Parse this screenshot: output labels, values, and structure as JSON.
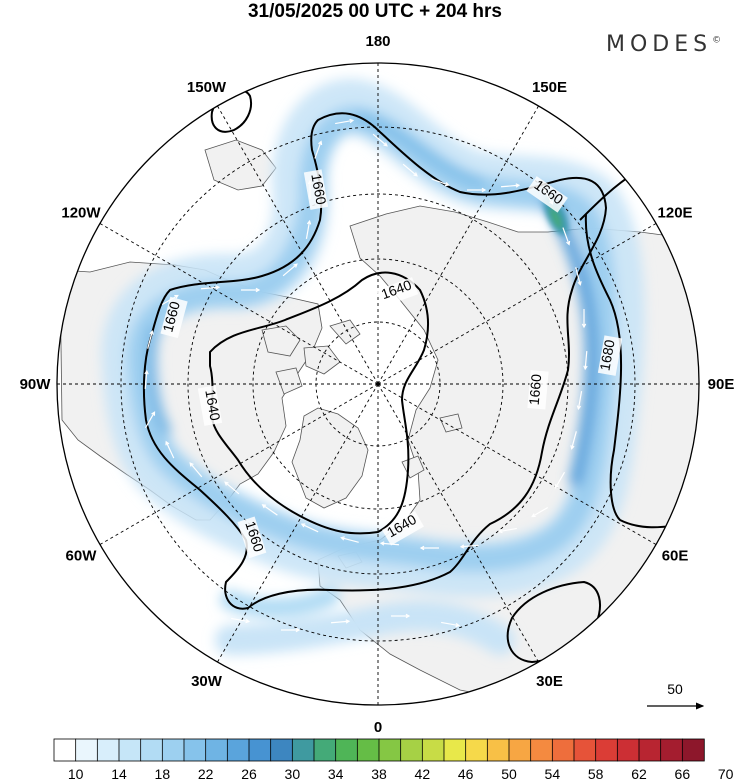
{
  "title": "31/05/2025  00 UTC  + 204 hrs",
  "brand": "MODES",
  "brand_mark": "©",
  "longitude_labels": [
    {
      "text": "180",
      "lon": 180
    },
    {
      "text": "150E",
      "lon": 150
    },
    {
      "text": "120E",
      "lon": 120
    },
    {
      "text": "90E",
      "lon": 90
    },
    {
      "text": "60E",
      "lon": 60
    },
    {
      "text": "30E",
      "lon": 30
    },
    {
      "text": "0",
      "lon": 0
    },
    {
      "text": "30W",
      "lon": -30
    },
    {
      "text": "60W",
      "lon": -60
    },
    {
      "text": "90W",
      "lon": -90
    },
    {
      "text": "120W",
      "lon": -120
    },
    {
      "text": "150W",
      "lon": -150
    }
  ],
  "contour_labels": [
    "1640",
    "1640",
    "1640",
    "1660",
    "1660",
    "1660",
    "1660",
    "1660",
    "1680"
  ],
  "wind_reference": {
    "label": "50"
  },
  "colorbar": {
    "ticks": [
      "10",
      "14",
      "18",
      "22",
      "26",
      "30",
      "34",
      "38",
      "42",
      "46",
      "50",
      "54",
      "58",
      "62",
      "66",
      "70"
    ],
    "colors": [
      "#ffffff",
      "#eaf6fd",
      "#d8eefb",
      "#c6e6f8",
      "#b2dcf4",
      "#9dd0f0",
      "#86c3eb",
      "#6fb4e4",
      "#5aa4dc",
      "#4793d2",
      "#3d86c0",
      "#3f9aa0",
      "#44aa78",
      "#4fb557",
      "#65bd46",
      "#85c744",
      "#a6d145",
      "#c8dc46",
      "#e8e84a",
      "#f6d94a",
      "#f8c046",
      "#f7a643",
      "#f48a40",
      "#ee6e3c",
      "#e65339",
      "#db3d36",
      "#cc2f34",
      "#b82531",
      "#a41d2f",
      "#8d172b"
    ]
  }
}
